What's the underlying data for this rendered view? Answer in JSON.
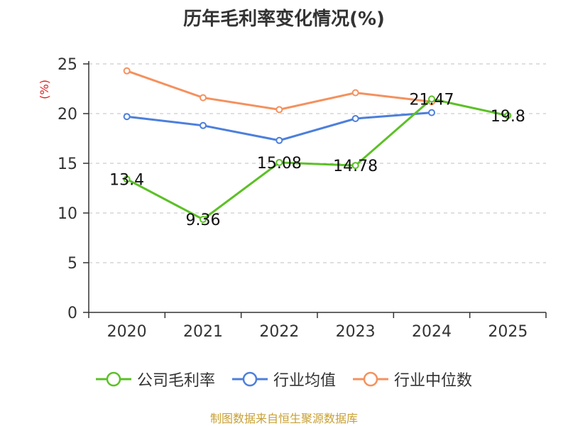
{
  "chart_data": {
    "type": "line",
    "title": "历年毛利率变化情况(%)",
    "ylabel": "(%)",
    "xlabel": "",
    "categories": [
      "2020",
      "2021",
      "2022",
      "2023",
      "2024",
      "2025"
    ],
    "ylim": [
      0,
      25
    ],
    "yticks": [
      0,
      5,
      10,
      15,
      20,
      25
    ],
    "grid": true,
    "legend_position": "bottom",
    "series": [
      {
        "name": "公司毛利率",
        "color": "#5cc026",
        "values": [
          13.4,
          9.36,
          15.08,
          14.78,
          21.47,
          19.8
        ],
        "labels": [
          "13.4",
          "9.36",
          "15.08",
          "14.78",
          "21.47",
          "19.8"
        ]
      },
      {
        "name": "行业均值",
        "color": "#4c7fdc",
        "values": [
          19.7,
          18.8,
          17.3,
          19.5,
          20.1,
          null
        ]
      },
      {
        "name": "行业中位数",
        "color": "#f4915e",
        "values": [
          24.3,
          21.6,
          20.4,
          22.1,
          21.2,
          null
        ]
      }
    ],
    "source": "制图数据来自恒生聚源数据库"
  }
}
